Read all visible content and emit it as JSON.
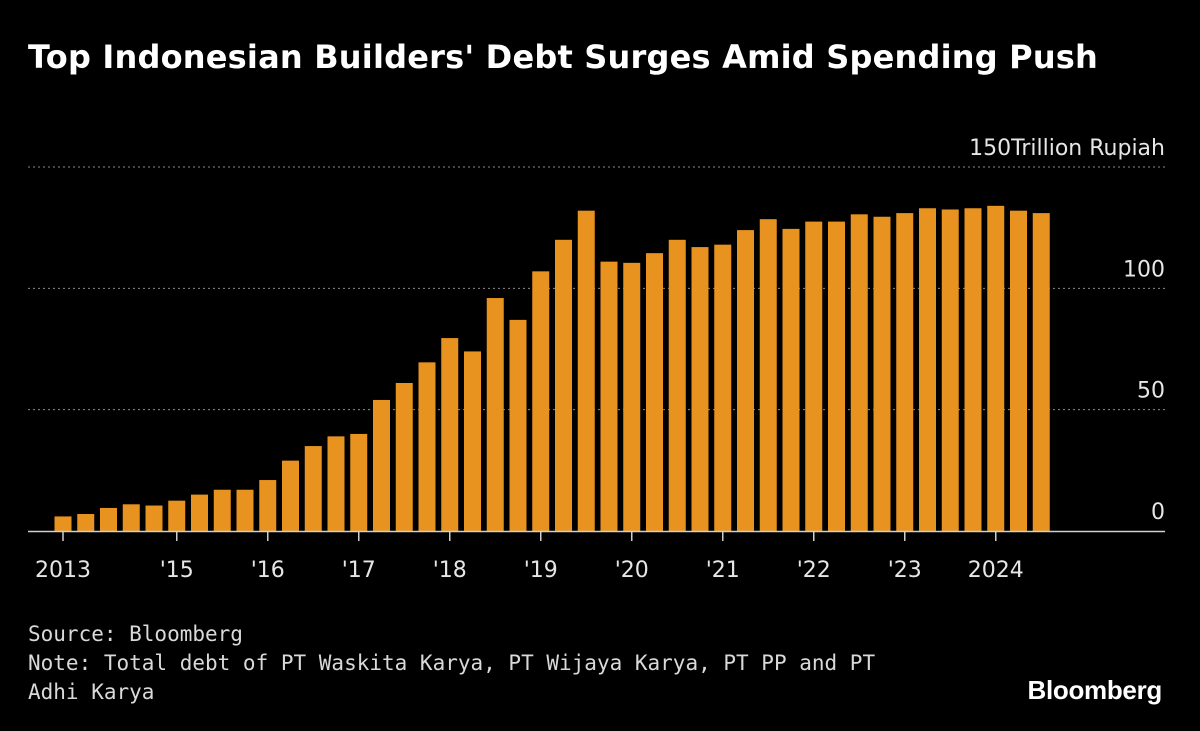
{
  "header": {
    "title": "Top Indonesian Builders' Debt Surges Amid Spending Push"
  },
  "chart_data": {
    "type": "bar",
    "ylabel": "Trillion Rupiah",
    "ylim": [
      0,
      150
    ],
    "y_ticks": [
      0,
      50,
      100,
      150
    ],
    "y_axis_side": "right",
    "grid": true,
    "bar_color": "#e8921f",
    "x_tick_labels": [
      {
        "label": "2013",
        "index": 0
      },
      {
        "label": "'15",
        "index": 5
      },
      {
        "label": "'16",
        "index": 9
      },
      {
        "label": "'17",
        "index": 13
      },
      {
        "label": "'18",
        "index": 17
      },
      {
        "label": "'19",
        "index": 21
      },
      {
        "label": "'20",
        "index": 25
      },
      {
        "label": "'21",
        "index": 29
      },
      {
        "label": "'22",
        "index": 33
      },
      {
        "label": "'23",
        "index": 37
      },
      {
        "label": "2024",
        "index": 41
      }
    ],
    "values": [
      6,
      7,
      9.5,
      11,
      10.5,
      12.5,
      15,
      17,
      17,
      21,
      29,
      35,
      39,
      40,
      54,
      61,
      69.5,
      79.5,
      74,
      96,
      87,
      107,
      120,
      132,
      111,
      110.5,
      114.5,
      120,
      117,
      118,
      124,
      128.5,
      124.5,
      127.5,
      127.5,
      130.5,
      129.5,
      131,
      133,
      132.5,
      133,
      134,
      132,
      131
    ]
  },
  "footer": {
    "source": "Source: Bloomberg",
    "note_line1": "Note: Total debt of PT Waskita Karya, PT Wijaya Karya, PT PP and PT",
    "note_line2": "Adhi Karya"
  },
  "brand": {
    "logo_text": "Bloomberg"
  }
}
